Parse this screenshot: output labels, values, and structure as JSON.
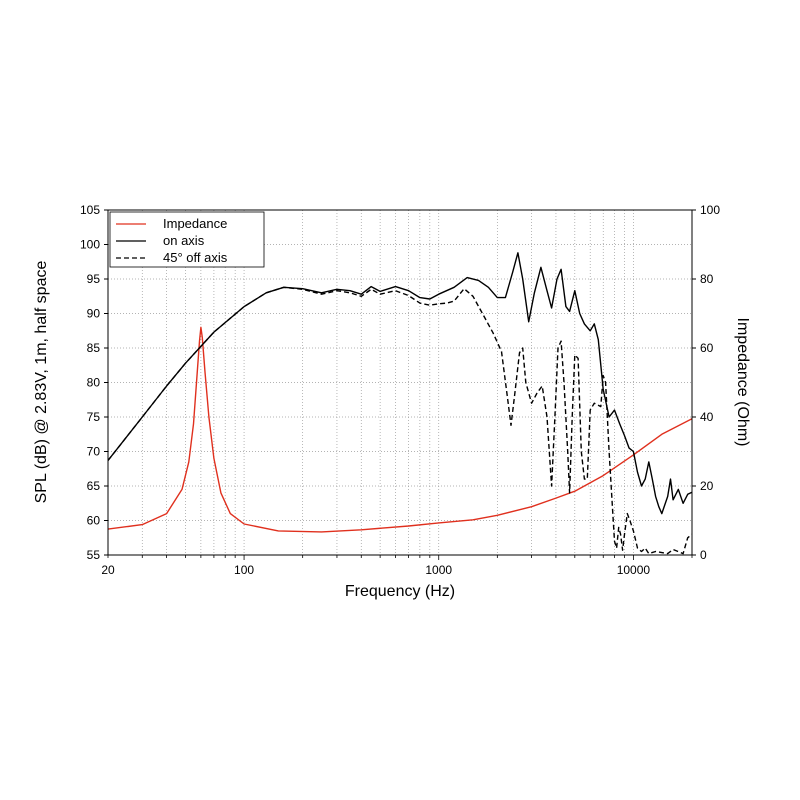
{
  "chart_data": {
    "type": "line",
    "xlabel": "Frequency (Hz)",
    "ylabel_left": "SPL (dB) @ 2.83V, 1m, half space",
    "ylabel_right": "Impedance (Ohm)",
    "x_scale": "log",
    "xlim": [
      20,
      20000
    ],
    "ylim_left": [
      55,
      105
    ],
    "ylim_right": [
      0,
      100
    ],
    "x_ticks": [
      {
        "value": 20,
        "label": "20"
      },
      {
        "value": 100,
        "label": "100"
      },
      {
        "value": 1000,
        "label": "1000"
      },
      {
        "value": 10000,
        "label": "10000"
      }
    ],
    "y_ticks_left": [
      "55",
      "60",
      "65",
      "70",
      "75",
      "80",
      "85",
      "90",
      "95",
      "100",
      "105"
    ],
    "y_ticks_right": [
      "0",
      "20",
      "40",
      "60",
      "80",
      "100"
    ],
    "grid": true,
    "legend_position": "top-left",
    "series": [
      {
        "name": "Impedance",
        "axis": "right",
        "color": "#e0301e",
        "style": "solid",
        "points": [
          [
            20,
            7.5
          ],
          [
            30,
            8.8
          ],
          [
            40,
            12
          ],
          [
            48,
            19
          ],
          [
            52,
            27
          ],
          [
            55,
            38
          ],
          [
            57,
            50
          ],
          [
            59,
            62
          ],
          [
            60,
            66
          ],
          [
            61,
            63
          ],
          [
            63,
            53
          ],
          [
            66,
            40
          ],
          [
            70,
            28
          ],
          [
            76,
            18
          ],
          [
            85,
            12
          ],
          [
            100,
            9
          ],
          [
            150,
            7
          ],
          [
            250,
            6.7
          ],
          [
            400,
            7.3
          ],
          [
            700,
            8.4
          ],
          [
            1000,
            9.3
          ],
          [
            1500,
            10.2
          ],
          [
            2000,
            11.5
          ],
          [
            3000,
            14
          ],
          [
            4000,
            16.5
          ],
          [
            5000,
            18.5
          ],
          [
            7000,
            23
          ],
          [
            10000,
            29
          ],
          [
            14000,
            35
          ],
          [
            20000,
            39.5
          ]
        ]
      },
      {
        "name": "on axis",
        "axis": "left",
        "color": "#000000",
        "style": "solid",
        "points": [
          [
            20,
            68.7
          ],
          [
            30,
            75
          ],
          [
            40,
            79.5
          ],
          [
            50,
            82.8
          ],
          [
            70,
            87.3
          ],
          [
            100,
            91
          ],
          [
            130,
            93
          ],
          [
            160,
            93.8
          ],
          [
            200,
            93.6
          ],
          [
            250,
            93
          ],
          [
            300,
            93.5
          ],
          [
            350,
            93.3
          ],
          [
            400,
            92.8
          ],
          [
            450,
            93.9
          ],
          [
            500,
            93.2
          ],
          [
            600,
            93.9
          ],
          [
            700,
            93.3
          ],
          [
            800,
            92.3
          ],
          [
            900,
            92.1
          ],
          [
            1000,
            92.8
          ],
          [
            1200,
            93.8
          ],
          [
            1400,
            95.2
          ],
          [
            1600,
            94.8
          ],
          [
            1800,
            93.8
          ],
          [
            2000,
            92.3
          ],
          [
            2200,
            92.3
          ],
          [
            2400,
            96
          ],
          [
            2550,
            98.8
          ],
          [
            2700,
            95
          ],
          [
            2900,
            88.8
          ],
          [
            3100,
            93
          ],
          [
            3350,
            96.7
          ],
          [
            3600,
            93.3
          ],
          [
            3800,
            90.8
          ],
          [
            4050,
            95
          ],
          [
            4250,
            96.4
          ],
          [
            4500,
            91
          ],
          [
            4700,
            90.3
          ],
          [
            5000,
            93.3
          ],
          [
            5300,
            90
          ],
          [
            5600,
            88.5
          ],
          [
            6000,
            87.5
          ],
          [
            6300,
            88.5
          ],
          [
            6600,
            86.2
          ],
          [
            7000,
            79
          ],
          [
            7500,
            75
          ],
          [
            8000,
            76
          ],
          [
            8500,
            74
          ],
          [
            9000,
            72.3
          ],
          [
            9500,
            70.5
          ],
          [
            10000,
            70
          ],
          [
            10500,
            67
          ],
          [
            11000,
            65
          ],
          [
            11500,
            66
          ],
          [
            12000,
            68.5
          ],
          [
            12500,
            66
          ],
          [
            13000,
            63.5
          ],
          [
            13500,
            62
          ],
          [
            14000,
            61
          ],
          [
            15000,
            63.5
          ],
          [
            15500,
            66
          ],
          [
            16000,
            63
          ],
          [
            17000,
            64.5
          ],
          [
            18000,
            62.5
          ],
          [
            19000,
            63.8
          ],
          [
            20000,
            64.1
          ]
        ]
      },
      {
        "name": "45° off axis",
        "axis": "left",
        "color": "#000000",
        "style": "dashed",
        "points": [
          [
            20,
            68.7
          ],
          [
            30,
            75
          ],
          [
            40,
            79.5
          ],
          [
            50,
            82.8
          ],
          [
            70,
            87.3
          ],
          [
            100,
            91
          ],
          [
            130,
            93
          ],
          [
            160,
            93.8
          ],
          [
            200,
            93.5
          ],
          [
            250,
            92.8
          ],
          [
            300,
            93.3
          ],
          [
            350,
            93
          ],
          [
            400,
            92.5
          ],
          [
            450,
            93.5
          ],
          [
            500,
            92.8
          ],
          [
            600,
            93.3
          ],
          [
            700,
            92.6
          ],
          [
            800,
            91.5
          ],
          [
            900,
            91.2
          ],
          [
            1000,
            91.4
          ],
          [
            1100,
            91.5
          ],
          [
            1200,
            91.8
          ],
          [
            1350,
            93.6
          ],
          [
            1500,
            92.5
          ],
          [
            1700,
            89.7
          ],
          [
            1900,
            87.2
          ],
          [
            2100,
            84.5
          ],
          [
            2250,
            78
          ],
          [
            2350,
            73.8
          ],
          [
            2450,
            78
          ],
          [
            2600,
            84.3
          ],
          [
            2700,
            85
          ],
          [
            2800,
            80
          ],
          [
            3000,
            77
          ],
          [
            3200,
            78.5
          ],
          [
            3400,
            79.5
          ],
          [
            3600,
            75
          ],
          [
            3800,
            65
          ],
          [
            3950,
            75
          ],
          [
            4100,
            85
          ],
          [
            4250,
            86
          ],
          [
            4400,
            80
          ],
          [
            4600,
            70
          ],
          [
            4700,
            64
          ],
          [
            4850,
            75
          ],
          [
            5000,
            84
          ],
          [
            5200,
            83.5
          ],
          [
            5400,
            70
          ],
          [
            5600,
            66
          ],
          [
            5800,
            66
          ],
          [
            6000,
            76
          ],
          [
            6300,
            77
          ],
          [
            6800,
            76.5
          ],
          [
            7000,
            81
          ],
          [
            7200,
            80
          ],
          [
            7500,
            70
          ],
          [
            7800,
            62
          ],
          [
            8000,
            57
          ],
          [
            8200,
            56
          ],
          [
            8400,
            59
          ],
          [
            8600,
            58
          ],
          [
            8800,
            55.7
          ],
          [
            9000,
            58
          ],
          [
            9300,
            61
          ],
          [
            9600,
            60
          ],
          [
            10000,
            58.5
          ],
          [
            10500,
            56
          ],
          [
            11000,
            55.5
          ],
          [
            11500,
            56
          ],
          [
            12000,
            55.2
          ],
          [
            13000,
            55.5
          ],
          [
            15000,
            55.2
          ],
          [
            16000,
            55.8
          ],
          [
            18000,
            55.2
          ],
          [
            19000,
            57.5
          ],
          [
            20000,
            58
          ]
        ]
      }
    ]
  }
}
